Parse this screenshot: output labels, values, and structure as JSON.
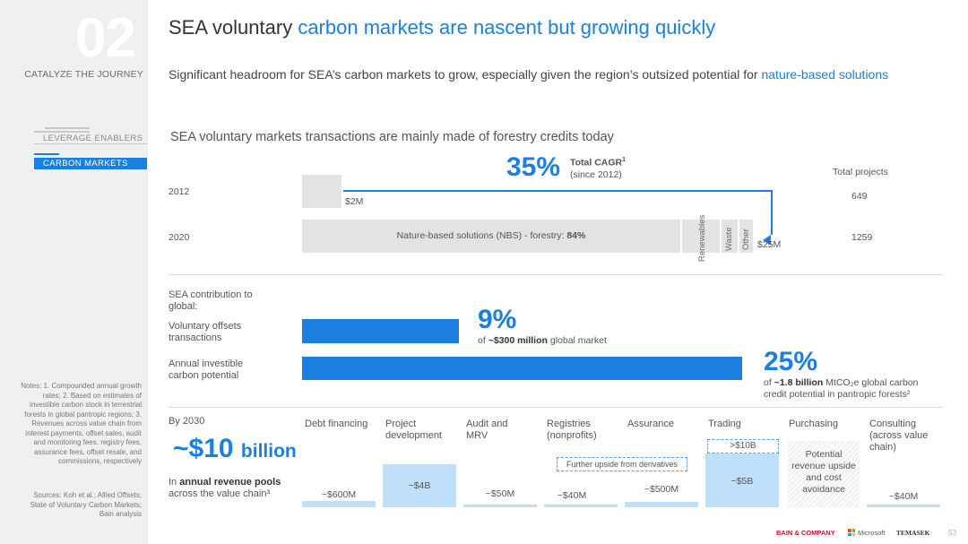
{
  "sidebar": {
    "section_number": "02",
    "section_title": "CATALYZE THE JOURNEY",
    "nav_items": [
      "LEVERAGE ENABLERS",
      "CARBON MARKETS"
    ],
    "notes": "Notes: 1. Compounded annual growth rates; 2. Based on estimates of investible carbon stock in terrestrial forests in global pantropic regions; 3. Revenues across value chain from interest payments, offset sales, audit and monitoring fees, registry fees, assurance fees, offset resale, and commissions, respectively",
    "sources": "Sources: Koh et al.; Allied Offsets; State of Voluntary Carbon Markets; Bain analysis"
  },
  "header": {
    "title_plain": "SEA voluntary ",
    "title_highlight": "carbon markets are nascent but growing quickly",
    "subtitle_plain": "Significant headroom for SEA’s carbon markets to grow, especially given the region’s outsized potential for ",
    "subtitle_highlight": "nature-based solutions"
  },
  "transactions": {
    "heading": "SEA voluntary markets transactions are mainly made of forestry credits today",
    "cagr_value": "35%",
    "cagr_label": "Total CAGR",
    "cagr_sup": "1",
    "cagr_since": "(since 2012)",
    "total_projects_header": "Total projects",
    "rows": [
      {
        "year": "2012",
        "value_label": "$2M",
        "projects": "649"
      },
      {
        "year": "2020",
        "value_label": "$25M",
        "projects": "1259"
      }
    ],
    "nbs_label": "Nature-based solutions (NBS) - forestry: ",
    "nbs_pct": "84%",
    "segments": [
      "Renewables",
      "Waste",
      "Other"
    ]
  },
  "contribution": {
    "heading": "SEA contribution to global:",
    "rows": [
      {
        "label": "Voluntary offsets transactions",
        "pct": "9%",
        "pre": "of ",
        "bold": "~$300 million",
        "post": " global market"
      },
      {
        "label": "Annual investible carbon potential",
        "pct": "25%",
        "pre": "of ",
        "bold": "~1.8 billion",
        "post": " MtCO₂e global carbon credit potential in pantropic forests²"
      }
    ]
  },
  "value_chain": {
    "by_label": "By 2030",
    "big_value": "~$10",
    "big_unit": "billion",
    "pools_pre": "In ",
    "pools_bold": "annual revenue pools",
    "pools_post": " across the value chain³",
    "upside_label": "Further upside from derivatives",
    "trading_upside": ">$10B",
    "columns": [
      {
        "name": "Debt financing",
        "value": "~$600M",
        "level": 0.12
      },
      {
        "name": "Project development",
        "value": "~$4B",
        "level": 0.8
      },
      {
        "name": "Audit and MRV",
        "value": "~$50M",
        "level": 0.01
      },
      {
        "name": "Registries (nonprofits)",
        "value": "~$40M",
        "level": 0.01
      },
      {
        "name": "Assurance",
        "value": "~$500M",
        "level": 0.1
      },
      {
        "name": "Trading",
        "value": "~$5B",
        "level": 1.0
      },
      {
        "name": "Purchasing",
        "value": "Potential revenue upside and cost avoidance",
        "level": 0
      },
      {
        "name": "Consulting (across value chain)",
        "value": "~$40M",
        "level": 0.01
      }
    ]
  },
  "footer": {
    "logos": [
      "BAIN & COMPANY",
      "Microsoft",
      "TEMASEK"
    ],
    "page_number": "53"
  }
}
